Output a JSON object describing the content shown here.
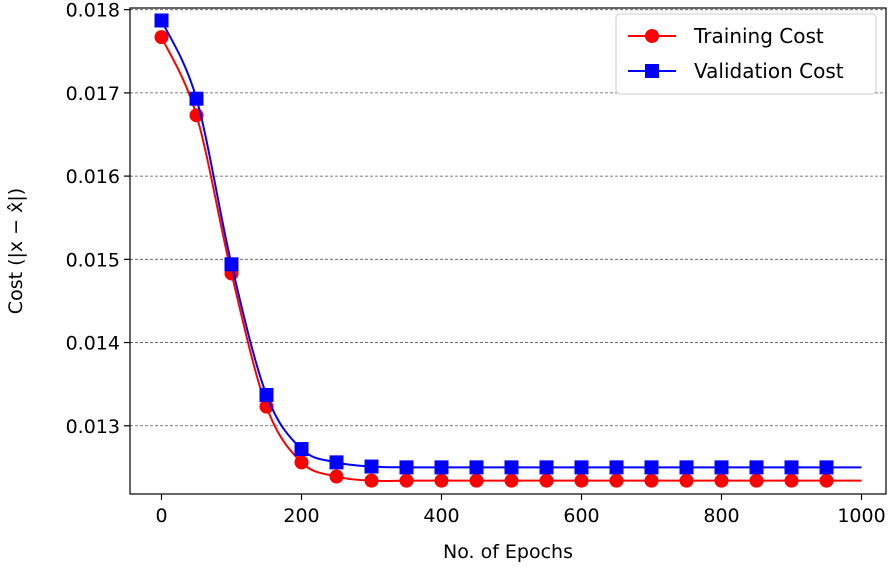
{
  "chart_data": {
    "type": "line",
    "xlabel": "No. of Epochs",
    "ylabel": "Cost (|x − x̂|)",
    "xlim": [
      -45,
      1035
    ],
    "ylim": [
      0.01218,
      0.01802
    ],
    "x_ticks": [
      0,
      200,
      400,
      600,
      800,
      1000
    ],
    "x_tick_labels": [
      "0",
      "200",
      "400",
      "600",
      "800",
      "1000"
    ],
    "y_ticks": [
      0.013,
      0.014,
      0.015,
      0.016,
      0.017,
      0.018
    ],
    "y_tick_labels": [
      "0.013",
      "0.014",
      "0.015",
      "0.016",
      "0.017",
      "0.018"
    ],
    "grid": "horizontal dashed",
    "legend_position": "top-right",
    "series": [
      {
        "name": "Training Cost",
        "color": "#ff0000",
        "marker": "circle",
        "x": [
          0,
          50,
          100,
          150,
          200,
          250,
          300,
          350,
          400,
          450,
          500,
          550,
          600,
          650,
          700,
          750,
          800,
          850,
          900,
          950
        ],
        "values": [
          0.01767,
          0.01673,
          0.01483,
          0.01323,
          0.01256,
          0.01239,
          0.01234,
          0.01234,
          0.01234,
          0.01234,
          0.01234,
          0.01234,
          0.01234,
          0.01234,
          0.01234,
          0.01234,
          0.01234,
          0.01234,
          0.01234,
          0.01234
        ]
      },
      {
        "name": "Validation Cost",
        "color": "#0000ff",
        "marker": "square",
        "x": [
          0,
          50,
          100,
          150,
          200,
          250,
          300,
          350,
          400,
          450,
          500,
          550,
          600,
          650,
          700,
          750,
          800,
          850,
          900,
          950
        ],
        "values": [
          0.01787,
          0.01693,
          0.01494,
          0.01337,
          0.01272,
          0.01256,
          0.01251,
          0.0125,
          0.0125,
          0.0125,
          0.0125,
          0.0125,
          0.0125,
          0.0125,
          0.0125,
          0.0125,
          0.0125,
          0.0125,
          0.0125,
          0.0125
        ]
      }
    ]
  }
}
